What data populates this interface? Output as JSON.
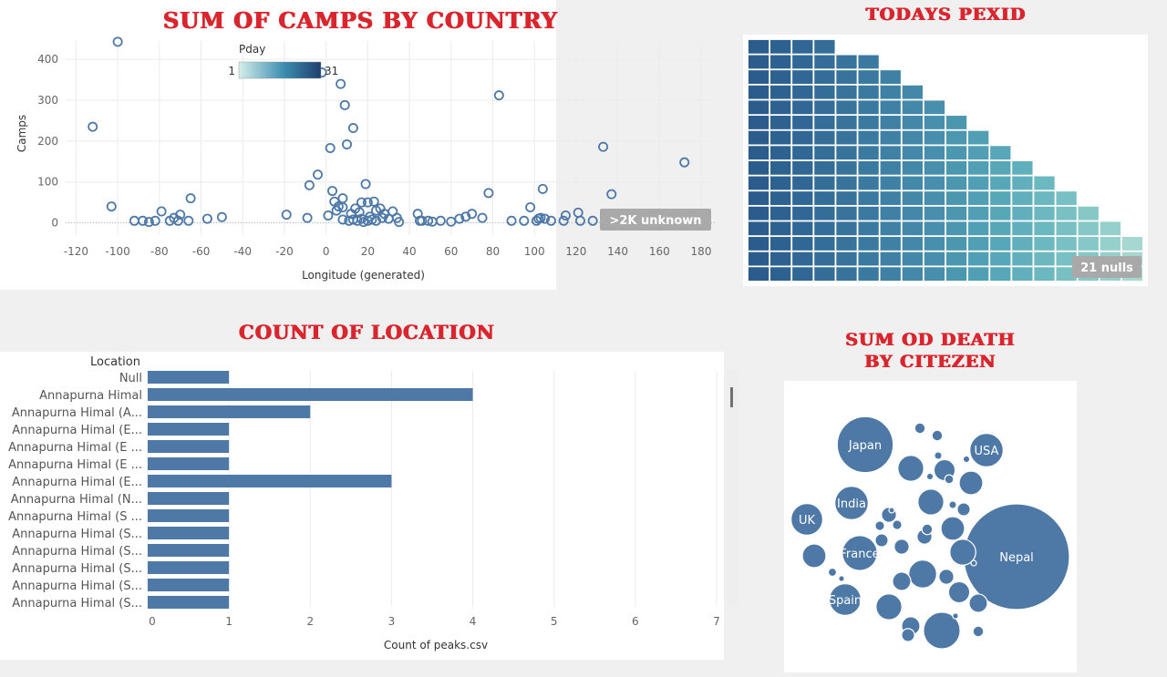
{
  "titles": {
    "camps": "SUM OF CAMPS BY COUNTRY",
    "pexid": "TODAYS PEXID",
    "location": "COUNT OF LOCATION",
    "death_line1": "SUM OD DEATH",
    "death_line2": "BY CITEZEN"
  },
  "scatter": {
    "legend_title": "Pday",
    "legend_min": "1",
    "legend_max": "31",
    "unknown_badge": ">2K unknown"
  },
  "treemap": {
    "nulls_badge": "21 nulls"
  },
  "colors": {
    "title_red": "#d9262e",
    "mark_blue": "#4e79a7",
    "dark_blue": "#2b5c8a",
    "light_teal": "#c6e6e3",
    "badge_gray": "#a9a9a9"
  },
  "chart_data": [
    {
      "id": "camps_scatter",
      "type": "scatter",
      "title": "SUM OF CAMPS BY COUNTRY",
      "xlabel": "Longitude (generated)",
      "ylabel": "Camps",
      "xlim": [
        -125,
        187
      ],
      "ylim": [
        -30,
        445
      ],
      "xticks": [
        -120,
        -100,
        -80,
        -60,
        -40,
        -20,
        0,
        20,
        40,
        60,
        80,
        100,
        120,
        140,
        160,
        180
      ],
      "yticks": [
        0,
        100,
        200,
        300,
        400
      ],
      "grid": true,
      "points": [
        [
          -112,
          235
        ],
        [
          -100,
          443
        ],
        [
          -103,
          40
        ],
        [
          -92,
          5
        ],
        [
          -88,
          5
        ],
        [
          -85,
          2
        ],
        [
          -82,
          5
        ],
        [
          -79,
          28
        ],
        [
          -75,
          5
        ],
        [
          -73,
          12
        ],
        [
          -71,
          5
        ],
        [
          -70,
          20
        ],
        [
          -66,
          5
        ],
        [
          -65,
          60
        ],
        [
          -57,
          10
        ],
        [
          -50,
          14
        ],
        [
          -19,
          20
        ],
        [
          -9,
          12
        ],
        [
          -8,
          92
        ],
        [
          -4,
          118
        ],
        [
          -2,
          368
        ],
        [
          1,
          18
        ],
        [
          2,
          183
        ],
        [
          3,
          78
        ],
        [
          4,
          52
        ],
        [
          5,
          30
        ],
        [
          6,
          40
        ],
        [
          7,
          340
        ],
        [
          8,
          60
        ],
        [
          8,
          38
        ],
        [
          8,
          8
        ],
        [
          9,
          288
        ],
        [
          10,
          192
        ],
        [
          11,
          5
        ],
        [
          12,
          22
        ],
        [
          13,
          8
        ],
        [
          13,
          232
        ],
        [
          14,
          35
        ],
        [
          15,
          5
        ],
        [
          16,
          26
        ],
        [
          17,
          10
        ],
        [
          17,
          50
        ],
        [
          18,
          2
        ],
        [
          19,
          95
        ],
        [
          20,
          5
        ],
        [
          20,
          50
        ],
        [
          21,
          15
        ],
        [
          22,
          8
        ],
        [
          23,
          52
        ],
        [
          24,
          5
        ],
        [
          24,
          30
        ],
        [
          26,
          35
        ],
        [
          27,
          12
        ],
        [
          28,
          22
        ],
        [
          30,
          10
        ],
        [
          32,
          28
        ],
        [
          34,
          12
        ],
        [
          35,
          2
        ],
        [
          44,
          22
        ],
        [
          45,
          5
        ],
        [
          46,
          5
        ],
        [
          49,
          5
        ],
        [
          51,
          3
        ],
        [
          55,
          5
        ],
        [
          60,
          3
        ],
        [
          64,
          10
        ],
        [
          67,
          15
        ],
        [
          70,
          22
        ],
        [
          75,
          12
        ],
        [
          78,
          73
        ],
        [
          83,
          312
        ],
        [
          89,
          5
        ],
        [
          95,
          5
        ],
        [
          98,
          38
        ],
        [
          101,
          5
        ],
        [
          102,
          10
        ],
        [
          103,
          12
        ],
        [
          104,
          83
        ],
        [
          105,
          10
        ],
        [
          108,
          5
        ],
        [
          114,
          5
        ],
        [
          115,
          18
        ],
        [
          121,
          25
        ],
        [
          122,
          5
        ],
        [
          128,
          5
        ],
        [
          133,
          186
        ],
        [
          137,
          70
        ],
        [
          172,
          148
        ]
      ],
      "legend": {
        "title": "Pday",
        "min": 1,
        "max": 31
      },
      "annotation": ">2K unknown"
    },
    {
      "id": "pexid_treemap",
      "type": "heatmap",
      "title": "TODAYS PEXID",
      "columns": [
        {
          "cells": 16,
          "color": "#2c5c8b"
        },
        {
          "cells": 16,
          "color": "#2d6190"
        },
        {
          "cells": 16,
          "color": "#306794"
        },
        {
          "cells": 16,
          "color": "#336d98"
        },
        {
          "cells": 15,
          "color": "#38739c"
        },
        {
          "cells": 15,
          "color": "#3b7aa0"
        },
        {
          "cells": 14,
          "color": "#3f81a5"
        },
        {
          "cells": 13,
          "color": "#4388a9"
        },
        {
          "cells": 12,
          "color": "#478fac"
        },
        {
          "cells": 11,
          "color": "#4b97b0"
        },
        {
          "cells": 10,
          "color": "#519fb4"
        },
        {
          "cells": 9,
          "color": "#58a7b8"
        },
        {
          "cells": 8,
          "color": "#61afbc"
        },
        {
          "cells": 7,
          "color": "#6bb8c0"
        },
        {
          "cells": 6,
          "color": "#78c0c4"
        },
        {
          "cells": 5,
          "color": "#86c8c8"
        },
        {
          "cells": 4,
          "color": "#95d0cc"
        },
        {
          "cells": 3,
          "color": "#a6d8d2"
        }
      ],
      "annotation": "21 nulls"
    },
    {
      "id": "location_bars",
      "type": "bar",
      "title": "COUNT OF LOCATION",
      "xlabel": "Count of peaks.csv",
      "ylabel": "Location",
      "xlim": [
        0,
        7
      ],
      "xticks": [
        0,
        1,
        2,
        3,
        4,
        5,
        6,
        7
      ],
      "grid": true,
      "categories": [
        "Null",
        "Annapurna Himal",
        "Annapurna Himal (A...",
        "Annapurna Himal (E...",
        "Annapurna Himal (E ...",
        "Annapurna Himal (E ...",
        "Annapurna Himal (E...",
        "Annapurna Himal (N...",
        "Annapurna Himal (S ...",
        "Annapurna Himal (S...",
        "Annapurna Himal (S...",
        "Annapurna Himal (S...",
        "Annapurna Himal (S...",
        "Annapurna Himal (S..."
      ],
      "values": [
        1,
        4,
        2,
        1,
        1,
        1,
        3,
        1,
        1,
        1,
        1,
        1,
        1,
        1
      ]
    },
    {
      "id": "death_bubbles",
      "type": "scatter",
      "title": "SUM OD DEATH BY CITEZEN",
      "bubbles": [
        {
          "label": "Nepal",
          "value": 100
        },
        {
          "label": "Japan",
          "value": 28
        },
        {
          "label": "USA",
          "value": 10
        },
        {
          "label": "India",
          "value": 10
        },
        {
          "label": "UK",
          "value": 9
        },
        {
          "label": "France",
          "value": 11
        },
        {
          "label": "Spain",
          "value": 9
        },
        {
          "label": "",
          "value": 12
        },
        {
          "label": "",
          "value": 7
        },
        {
          "label": "",
          "value": 6
        },
        {
          "label": "",
          "value": 6
        },
        {
          "label": "",
          "value": 6
        },
        {
          "label": "",
          "value": 6
        },
        {
          "label": "",
          "value": 5
        },
        {
          "label": "",
          "value": 5
        },
        {
          "label": "",
          "value": 5
        },
        {
          "label": "",
          "value": 4
        },
        {
          "label": "",
          "value": 4
        },
        {
          "label": "",
          "value": 3
        },
        {
          "label": "",
          "value": 3
        },
        {
          "label": "",
          "value": 3
        },
        {
          "label": "",
          "value": 2
        },
        {
          "label": "",
          "value": 2
        },
        {
          "label": "",
          "value": 2
        },
        {
          "label": "",
          "value": 2
        },
        {
          "label": "",
          "value": 1.5
        },
        {
          "label": "",
          "value": 1.5
        },
        {
          "label": "",
          "value": 1.5
        },
        {
          "label": "",
          "value": 1
        },
        {
          "label": "",
          "value": 1
        },
        {
          "label": "",
          "value": 1
        },
        {
          "label": "",
          "value": 1
        },
        {
          "label": "",
          "value": 0.8
        },
        {
          "label": "",
          "value": 0.8
        },
        {
          "label": "",
          "value": 0.7
        },
        {
          "label": "",
          "value": 0.6
        },
        {
          "label": "",
          "value": 0.5
        },
        {
          "label": "",
          "value": 0.5
        },
        {
          "label": "",
          "value": 0.4
        },
        {
          "label": "",
          "value": 0.4
        },
        {
          "label": "",
          "value": 0.3
        },
        {
          "label": "",
          "value": 0.3
        },
        {
          "label": "",
          "value": 0.2
        },
        {
          "label": "",
          "value": 0.2
        }
      ]
    }
  ]
}
